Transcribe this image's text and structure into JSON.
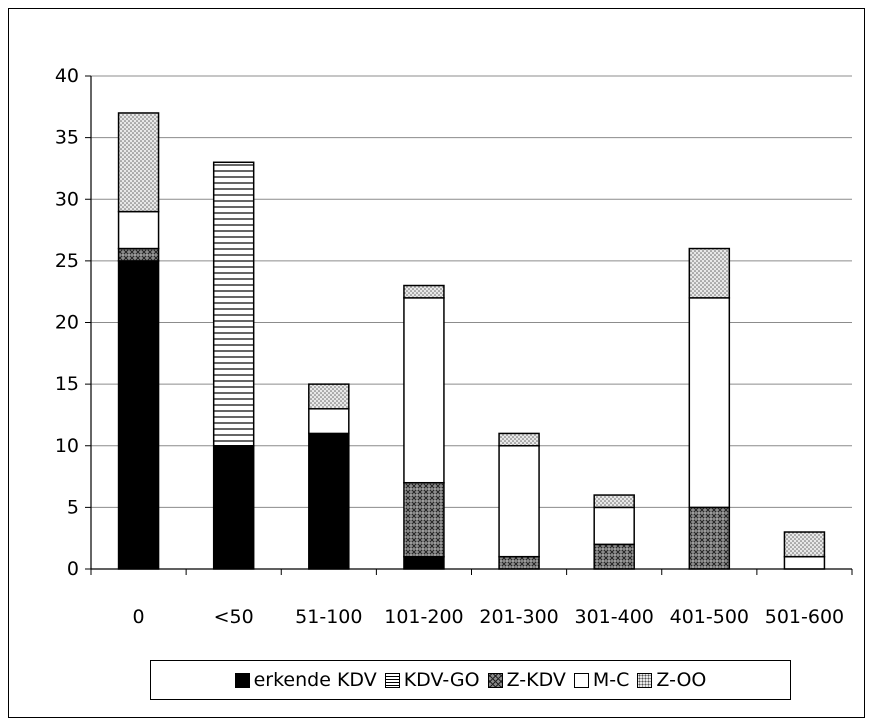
{
  "chart_data": {
    "type": "bar",
    "stacked": true,
    "categories": [
      "0",
      "<50",
      "51-100",
      "101-200",
      "201-300",
      "301-400",
      "401-500",
      "501-600"
    ],
    "series": [
      {
        "name": "erkende KDV",
        "values": [
          25,
          10,
          11,
          1,
          0,
          0,
          0,
          0
        ],
        "pattern": "solid-black"
      },
      {
        "name": "KDV-GO",
        "values": [
          0,
          23,
          0,
          0,
          0,
          0,
          0,
          0
        ],
        "pattern": "horizontal-lines"
      },
      {
        "name": "Z-KDV",
        "values": [
          1,
          0,
          0,
          6,
          1,
          2,
          5,
          0
        ],
        "pattern": "crosshatch"
      },
      {
        "name": "M-C",
        "values": [
          3,
          0,
          2,
          15,
          9,
          3,
          17,
          1
        ],
        "pattern": "white"
      },
      {
        "name": "Z-OO",
        "values": [
          8,
          0,
          2,
          1,
          1,
          1,
          4,
          2
        ],
        "pattern": "dots"
      }
    ],
    "yticks": [
      "0",
      "5",
      "10",
      "15",
      "20",
      "25",
      "30",
      "35",
      "40"
    ],
    "ylim": [
      0,
      40
    ],
    "grid": true,
    "legend_position": "bottom",
    "title": "",
    "xlabel": "",
    "ylabel": ""
  }
}
